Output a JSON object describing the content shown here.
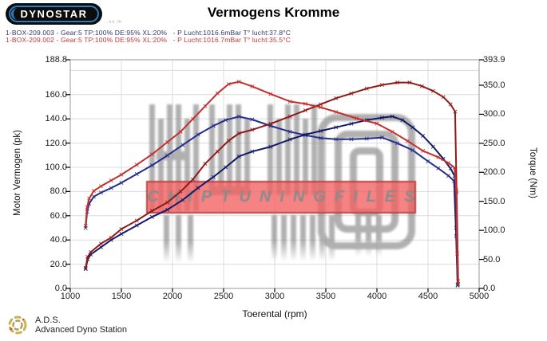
{
  "header": {
    "logo_text": "DYNOSTAR",
    "logo_sub": "..ss m",
    "title": "Vermogens Kromme",
    "runs": [
      {
        "label": "1-BOX-209.003 - Gear:5 TP:100% DE:95% XL:20%   - P Lucht:1016.6mBar T° lucht:37.8°C",
        "color": "#333366"
      },
      {
        "label": "1-BOX-209.002 - Gear:5 TP:100% DE:95% XL:20%   - P Lucht:1016.7mBar T° lucht:35.5°C",
        "color": "#cc3333"
      }
    ]
  },
  "watermark": {
    "text": "CHIPTUNINGFILES"
  },
  "footer": {
    "abbr": "A.D.S.",
    "name": "Advanced Dyno Station"
  },
  "chart_data": {
    "type": "line",
    "title": "Vermogens Kromme",
    "xlabel": "Toerental (rpm)",
    "ylabel_left": "Motor Vermogen (pk)",
    "ylabel_right": "Torque (Nm)",
    "xlim": [
      1000,
      5000
    ],
    "left_ylim": [
      0,
      188.8
    ],
    "right_ylim": [
      0,
      393.9
    ],
    "grid": true,
    "x_ticks": [
      "1000",
      "1500",
      "2000",
      "2500",
      "3000",
      "3500",
      "4000",
      "4500",
      "5000"
    ],
    "left_ticks": [
      "188.8",
      "160.0",
      "140.0",
      "120.0",
      "100.0",
      "80.0",
      "60.0",
      "40.0",
      "20.0",
      "0.0"
    ],
    "left_tick_values": [
      188.8,
      160,
      140,
      120,
      100,
      80,
      60,
      40,
      20,
      0
    ],
    "right_ticks": [
      "393.9",
      "350.0",
      "300.0",
      "250.0",
      "200.0",
      "150.0",
      "100.0",
      "50.0",
      "0.0"
    ],
    "right_tick_values": [
      393.9,
      350,
      300,
      250,
      200,
      150,
      100,
      50,
      0
    ],
    "series": [
      {
        "name": "run-003-torque",
        "run": "1-BOX-209.003",
        "unit": "Nm",
        "axis": "right",
        "color": "#242e8c",
        "points": [
          [
            1150,
            104
          ],
          [
            1165,
            132
          ],
          [
            1185,
            146
          ],
          [
            1230,
            158
          ],
          [
            1300,
            165
          ],
          [
            1400,
            173
          ],
          [
            1500,
            182
          ],
          [
            1650,
            197
          ],
          [
            1800,
            212
          ],
          [
            1950,
            229
          ],
          [
            2100,
            247
          ],
          [
            2250,
            265
          ],
          [
            2400,
            280
          ],
          [
            2520,
            290
          ],
          [
            2650,
            296
          ],
          [
            2780,
            291
          ],
          [
            2960,
            280
          ],
          [
            3150,
            270
          ],
          [
            3300,
            264
          ],
          [
            3450,
            259
          ],
          [
            3600,
            257
          ],
          [
            3750,
            257
          ],
          [
            3900,
            258
          ],
          [
            4050,
            260
          ],
          [
            4200,
            250
          ],
          [
            4350,
            238
          ],
          [
            4500,
            219
          ],
          [
            4600,
            207
          ],
          [
            4700,
            194
          ],
          [
            4755,
            185
          ],
          [
            4775,
            90
          ],
          [
            4790,
            5
          ]
        ]
      },
      {
        "name": "run-003-power",
        "run": "1-BOX-209.003",
        "unit": "pk",
        "axis": "left",
        "color": "#141b66",
        "points": [
          [
            1150,
            16
          ],
          [
            1170,
            24
          ],
          [
            1200,
            28
          ],
          [
            1300,
            34
          ],
          [
            1400,
            40
          ],
          [
            1500,
            45
          ],
          [
            1650,
            52
          ],
          [
            1800,
            59
          ],
          [
            1950,
            65
          ],
          [
            2100,
            73
          ],
          [
            2250,
            83
          ],
          [
            2400,
            92
          ],
          [
            2520,
            100
          ],
          [
            2650,
            109
          ],
          [
            2780,
            113
          ],
          [
            2960,
            117
          ],
          [
            3150,
            123
          ],
          [
            3300,
            127
          ],
          [
            3450,
            130
          ],
          [
            3600,
            133
          ],
          [
            3750,
            136
          ],
          [
            3900,
            139
          ],
          [
            4050,
            141
          ],
          [
            4150,
            142
          ],
          [
            4250,
            139
          ],
          [
            4350,
            133
          ],
          [
            4450,
            126
          ],
          [
            4550,
            117
          ],
          [
            4650,
            107
          ],
          [
            4720,
            99
          ],
          [
            4760,
            93
          ],
          [
            4775,
            50
          ],
          [
            4790,
            3
          ]
        ]
      },
      {
        "name": "run-002-power",
        "run": "1-BOX-209.002",
        "unit": "pk",
        "axis": "left",
        "color": "#8e1a1a",
        "points": [
          [
            1150,
            17
          ],
          [
            1170,
            26
          ],
          [
            1200,
            30
          ],
          [
            1300,
            37
          ],
          [
            1400,
            42
          ],
          [
            1500,
            49
          ],
          [
            1650,
            56
          ],
          [
            1800,
            64
          ],
          [
            1950,
            71
          ],
          [
            2080,
            80
          ],
          [
            2200,
            90
          ],
          [
            2320,
            103
          ],
          [
            2440,
            113
          ],
          [
            2550,
            122
          ],
          [
            2650,
            128
          ],
          [
            2780,
            131
          ],
          [
            2960,
            136
          ],
          [
            3150,
            142
          ],
          [
            3300,
            147
          ],
          [
            3450,
            152
          ],
          [
            3600,
            157
          ],
          [
            3750,
            161
          ],
          [
            3900,
            165
          ],
          [
            4050,
            168
          ],
          [
            4200,
            170
          ],
          [
            4320,
            170
          ],
          [
            4440,
            167
          ],
          [
            4550,
            163
          ],
          [
            4650,
            158
          ],
          [
            4720,
            152
          ],
          [
            4765,
            146
          ],
          [
            4780,
            80
          ],
          [
            4795,
            6
          ]
        ]
      },
      {
        "name": "run-002-torque",
        "run": "1-BOX-209.002",
        "unit": "Nm",
        "axis": "right",
        "color": "#c22f2f",
        "points": [
          [
            1150,
            108
          ],
          [
            1165,
            140
          ],
          [
            1185,
            155
          ],
          [
            1230,
            168
          ],
          [
            1300,
            176
          ],
          [
            1400,
            186
          ],
          [
            1500,
            196
          ],
          [
            1650,
            213
          ],
          [
            1800,
            231
          ],
          [
            1950,
            252
          ],
          [
            2080,
            270
          ],
          [
            2200,
            292
          ],
          [
            2320,
            314
          ],
          [
            2440,
            336
          ],
          [
            2550,
            352
          ],
          [
            2650,
            356
          ],
          [
            2780,
            348
          ],
          [
            2960,
            335
          ],
          [
            3150,
            322
          ],
          [
            3300,
            318
          ],
          [
            3450,
            312
          ],
          [
            3600,
            304
          ],
          [
            3800,
            293
          ],
          [
            4000,
            284
          ],
          [
            4150,
            270
          ],
          [
            4300,
            254
          ],
          [
            4450,
            237
          ],
          [
            4600,
            226
          ],
          [
            4700,
            216
          ],
          [
            4760,
            208
          ],
          [
            4775,
            170
          ],
          [
            4785,
            60
          ],
          [
            4795,
            8
          ]
        ]
      }
    ]
  }
}
